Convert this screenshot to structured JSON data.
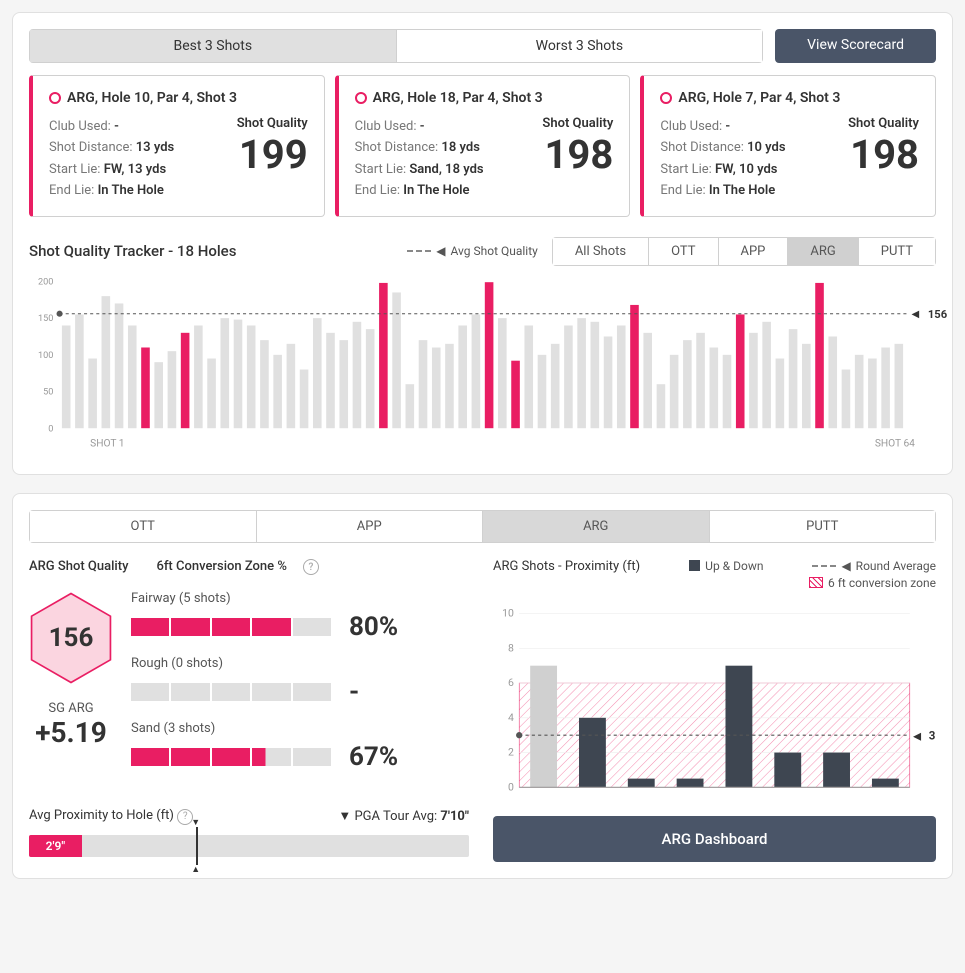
{
  "colors": {
    "accent": "#e91e63",
    "dark": "#4a5568",
    "barFaded": "#e0e0e0",
    "barHighlight": "#e91e63",
    "barDark": "#3e4651"
  },
  "topTabs": {
    "best": "Best 3 Shots",
    "worst": "Worst 3 Shots",
    "active": "best"
  },
  "scorecard": "View Scorecard",
  "shots": [
    {
      "title": "ARG, Hole 10, Par 4, Shot 3",
      "club": "-",
      "dist": "13 yds",
      "startLie": "FW, 13 yds",
      "endLie": "In The Hole",
      "sq": "199"
    },
    {
      "title": "ARG, Hole 18, Par 4, Shot 3",
      "club": "-",
      "dist": "18 yds",
      "startLie": "Sand, 18 yds",
      "endLie": "In The Hole",
      "sq": "198"
    },
    {
      "title": "ARG, Hole 7, Par 4, Shot 3",
      "club": "-",
      "dist": "10 yds",
      "startLie": "FW, 10 yds",
      "endLie": "In The Hole",
      "sq": "198"
    }
  ],
  "labels": {
    "clubUsed": "Club Used:",
    "shotDist": "Shot Distance:",
    "startLie": "Start Lie:",
    "endLie": "End Lie:",
    "sq": "Shot Quality"
  },
  "tracker": {
    "title": "Shot Quality Tracker - 18 Holes",
    "legend": "Avg Shot Quality",
    "avg": 156,
    "avgLabel": "156",
    "filters": [
      "All Shots",
      "OTT",
      "APP",
      "ARG",
      "PUTT"
    ],
    "active": "ARG",
    "ylim": [
      0,
      200
    ],
    "yticks": [
      0,
      50,
      100,
      150,
      200
    ],
    "xLabels": {
      "first": "SHOT 1",
      "last": "SHOT 64"
    },
    "bars": [
      {
        "v": 140,
        "h": 0
      },
      {
        "v": 155,
        "h": 0
      },
      {
        "v": 95,
        "h": 0
      },
      {
        "v": 180,
        "h": 0
      },
      {
        "v": 170,
        "h": 0
      },
      {
        "v": 140,
        "h": 0
      },
      {
        "v": 110,
        "h": 1
      },
      {
        "v": 90,
        "h": 0
      },
      {
        "v": 105,
        "h": 0
      },
      {
        "v": 130,
        "h": 1
      },
      {
        "v": 140,
        "h": 0
      },
      {
        "v": 95,
        "h": 0
      },
      {
        "v": 150,
        "h": 0
      },
      {
        "v": 148,
        "h": 0
      },
      {
        "v": 140,
        "h": 0
      },
      {
        "v": 120,
        "h": 0
      },
      {
        "v": 100,
        "h": 0
      },
      {
        "v": 115,
        "h": 0
      },
      {
        "v": 80,
        "h": 0
      },
      {
        "v": 150,
        "h": 0
      },
      {
        "v": 130,
        "h": 0
      },
      {
        "v": 120,
        "h": 0
      },
      {
        "v": 145,
        "h": 0
      },
      {
        "v": 135,
        "h": 0
      },
      {
        "v": 198,
        "h": 1
      },
      {
        "v": 185,
        "h": 0
      },
      {
        "v": 60,
        "h": 0
      },
      {
        "v": 120,
        "h": 0
      },
      {
        "v": 110,
        "h": 0
      },
      {
        "v": 115,
        "h": 0
      },
      {
        "v": 140,
        "h": 0
      },
      {
        "v": 155,
        "h": 0
      },
      {
        "v": 199,
        "h": 1
      },
      {
        "v": 150,
        "h": 0
      },
      {
        "v": 92,
        "h": 1
      },
      {
        "v": 140,
        "h": 0
      },
      {
        "v": 100,
        "h": 0
      },
      {
        "v": 115,
        "h": 0
      },
      {
        "v": 140,
        "h": 0
      },
      {
        "v": 150,
        "h": 0
      },
      {
        "v": 145,
        "h": 0
      },
      {
        "v": 125,
        "h": 0
      },
      {
        "v": 140,
        "h": 0
      },
      {
        "v": 168,
        "h": 1
      },
      {
        "v": 130,
        "h": 0
      },
      {
        "v": 60,
        "h": 0
      },
      {
        "v": 100,
        "h": 0
      },
      {
        "v": 120,
        "h": 0
      },
      {
        "v": 130,
        "h": 0
      },
      {
        "v": 110,
        "h": 0
      },
      {
        "v": 100,
        "h": 0
      },
      {
        "v": 155,
        "h": 1
      },
      {
        "v": 130,
        "h": 0
      },
      {
        "v": 145,
        "h": 0
      },
      {
        "v": 95,
        "h": 0
      },
      {
        "v": 135,
        "h": 0
      },
      {
        "v": 115,
        "h": 0
      },
      {
        "v": 198,
        "h": 1
      },
      {
        "v": 125,
        "h": 0
      },
      {
        "v": 80,
        "h": 0
      },
      {
        "v": 100,
        "h": 0
      },
      {
        "v": 95,
        "h": 0
      },
      {
        "v": 110,
        "h": 0
      },
      {
        "v": 115,
        "h": 0
      }
    ]
  },
  "panel": {
    "tabs": [
      "OTT",
      "APP",
      "ARG",
      "PUTT"
    ],
    "active": "ARG",
    "sqTitle": "ARG Shot Quality",
    "convTitle": "6ft Conversion Zone %",
    "hexVal": "156",
    "sgLabel": "SG ARG",
    "sgVal": "+5.19",
    "conversions": [
      {
        "label": "Fairway (5 shots)",
        "fill": 4,
        "partial": 0,
        "pct": "80%"
      },
      {
        "label": "Rough (0 shots)",
        "fill": 0,
        "partial": 0,
        "pct": "-"
      },
      {
        "label": "Sand (3 shots)",
        "fill": 3,
        "partial": 35,
        "pct": "67%"
      }
    ],
    "proxTitle": "Avg Proximity to Hole (ft)",
    "pgaLabel": "PGA Tour Avg:",
    "pgaVal": "7'10\"",
    "proxVal": "2'9\"",
    "proxFillPct": 12,
    "proxMarkerPct": 38,
    "rightTitle": "ARG Shots - Proximity (ft)",
    "legends": {
      "updown": "Up & Down",
      "roundAvg": "Round Average",
      "convZone": "6 ft conversion zone"
    },
    "proxChart": {
      "ylim": [
        0,
        11
      ],
      "yticks": [
        0,
        2,
        4,
        6,
        8,
        10
      ],
      "avg": 3,
      "avgLabel": "3",
      "zoneMax": 6,
      "bars": [
        {
          "v": 7,
          "up": 0
        },
        {
          "v": 4,
          "up": 1
        },
        {
          "v": 0.5,
          "up": 1
        },
        {
          "v": 0.5,
          "up": 1
        },
        {
          "v": 7,
          "up": 1
        },
        {
          "v": 2,
          "up": 1
        },
        {
          "v": 2,
          "up": 1
        },
        {
          "v": 0.5,
          "up": 1
        }
      ]
    },
    "dashBtn": "ARG Dashboard"
  }
}
